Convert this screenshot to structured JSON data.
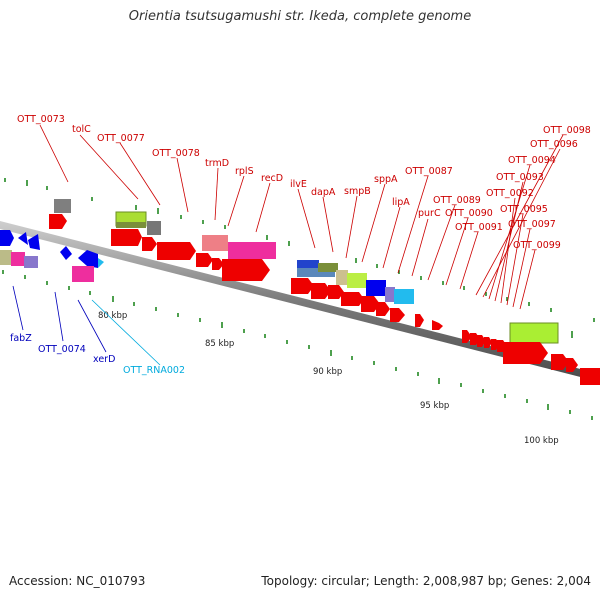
{
  "title": "Orientia tsutsugamushi str. Ikeda, complete genome",
  "footer": {
    "accession": "Accession: NC_010793",
    "summary": "Topology: circular; Length: 2,008,987 bp; Genes: 2,004"
  },
  "scale_labels": [
    "80 kbp",
    "85 kbp",
    "90 kbp",
    "95 kbp",
    "100 kbp"
  ],
  "upper_labels": [
    "OTT_0073",
    "tolC",
    "OTT_0077",
    "OTT_0078",
    "trmD",
    "rplS",
    "recD",
    "ilvE",
    "dapA",
    "smpB",
    "sppA",
    "lipA",
    "OTT_0087",
    "purC",
    "OTT_0089",
    "OTT_0090",
    "OTT_0091",
    "OTT_0098",
    "OTT_0096",
    "OTT_0094",
    "OTT_0093",
    "OTT_0092",
    "OTT_0095",
    "OTT_0097",
    "OTT_0099"
  ],
  "lower_labels": [
    "fabZ",
    "OTT_0074",
    "xerD",
    "OTT_RNA002"
  ],
  "colors": {
    "forward_gene": "#ff0000",
    "reverse_gene": "#0000ee",
    "rna_gene": "#00bbee",
    "forward_label": "#cc0000",
    "reverse_label": "#0000bb",
    "rna_label": "#00aadd",
    "backbone": "#888888",
    "tick": "#228822"
  }
}
